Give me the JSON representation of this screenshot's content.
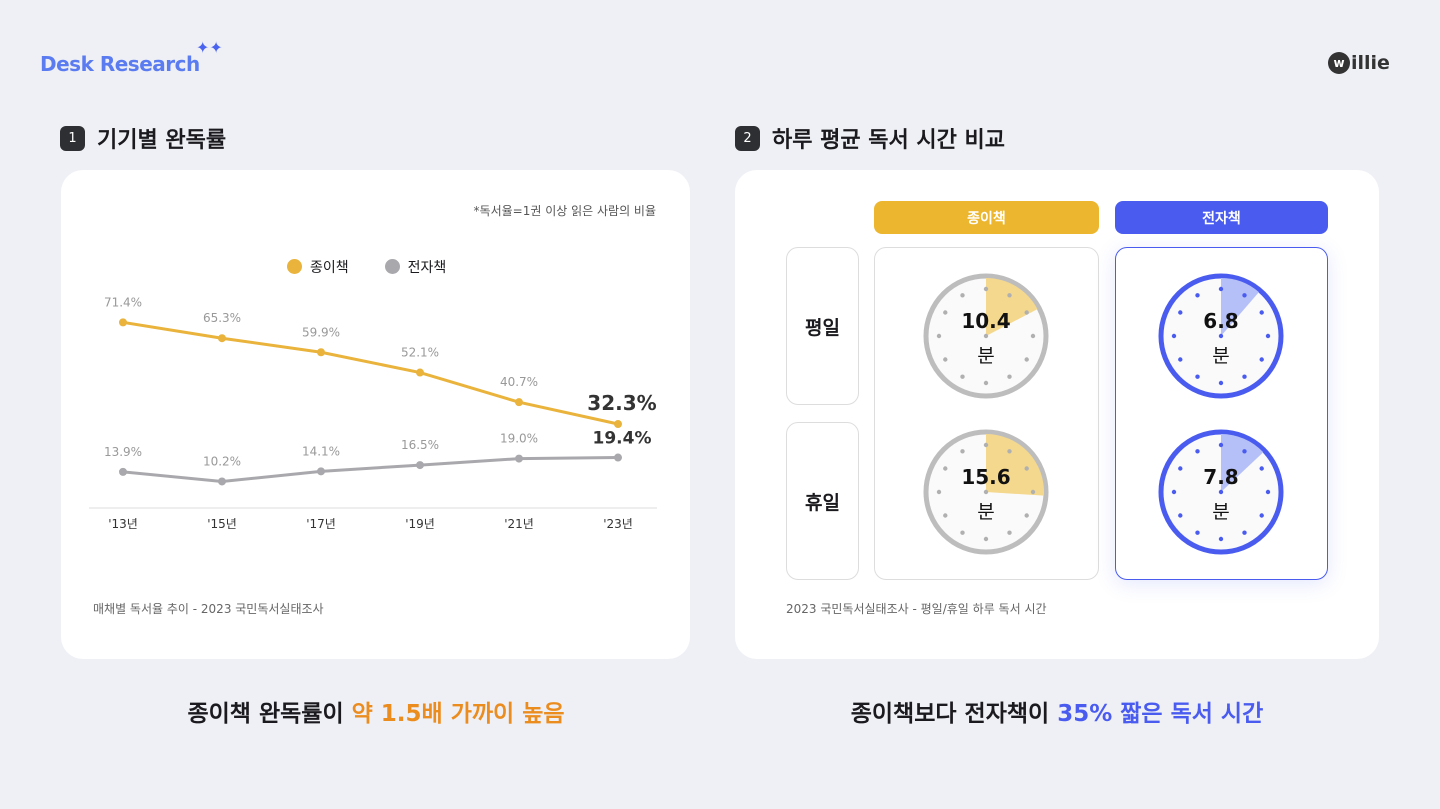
{
  "header": {
    "brand": "Desk Research",
    "logo": "willie",
    "brand_color": "#5b7cf0"
  },
  "section1": {
    "number": "1",
    "title": "기기별 완독률",
    "note": "*독서율=1권 이상 읽은 사람의 비율",
    "source": "매채별 독서율 추이 - 2023 국민독서실태조사",
    "conclusion_prefix": "종이책 완독률이 ",
    "conclusion_highlight": "약 1.5배 가까이 높음"
  },
  "chart_data": {
    "type": "line",
    "categories": [
      "'13년",
      "'15년",
      "'17년",
      "'19년",
      "'21년",
      "'23년"
    ],
    "series": [
      {
        "name": "종이책",
        "color": "#e9b33c",
        "values": [
          71.4,
          65.3,
          59.9,
          52.1,
          40.7,
          32.3
        ],
        "labels": [
          "71.4%",
          "65.3%",
          "59.9%",
          "52.1%",
          "40.7%",
          "32.3%"
        ]
      },
      {
        "name": "전자책",
        "color": "#a9a9ad",
        "values": [
          13.9,
          10.2,
          14.1,
          16.5,
          19.0,
          19.4
        ],
        "labels": [
          "13.9%",
          "10.2%",
          "14.1%",
          "16.5%",
          "19.0%",
          "19.4%"
        ]
      }
    ],
    "legend": "top-center",
    "grid": false,
    "ylim": [
      0,
      80
    ]
  },
  "section2": {
    "number": "2",
    "title": "하루 평균 독서 시간 비교",
    "source": "2023 국민독서실태조사 - 평일/휴일 하루 독서 시간",
    "columns": [
      {
        "label": "종이책",
        "color": "#ecb62e",
        "wedge": "#f4d88e",
        "ring": "#bdbdbd",
        "dots": "#b0b0b0"
      },
      {
        "label": "전자책",
        "color": "#4a5cf0",
        "wedge": "#b6c0f8",
        "ring": "#4a5cf0",
        "dots": "#4a5cf0"
      }
    ],
    "rows": [
      "평일",
      "휴일"
    ],
    "values": [
      [
        {
          "value": "10.4",
          "minutes": 10.4
        },
        {
          "value": "6.8",
          "minutes": 6.8
        }
      ],
      [
        {
          "value": "15.6",
          "minutes": 15.6
        },
        {
          "value": "7.8",
          "minutes": 7.8
        }
      ]
    ],
    "unit": "분",
    "conclusion_prefix": "종이책보다 전자책이 ",
    "conclusion_highlight": "35% 짧은 독서 시간"
  }
}
